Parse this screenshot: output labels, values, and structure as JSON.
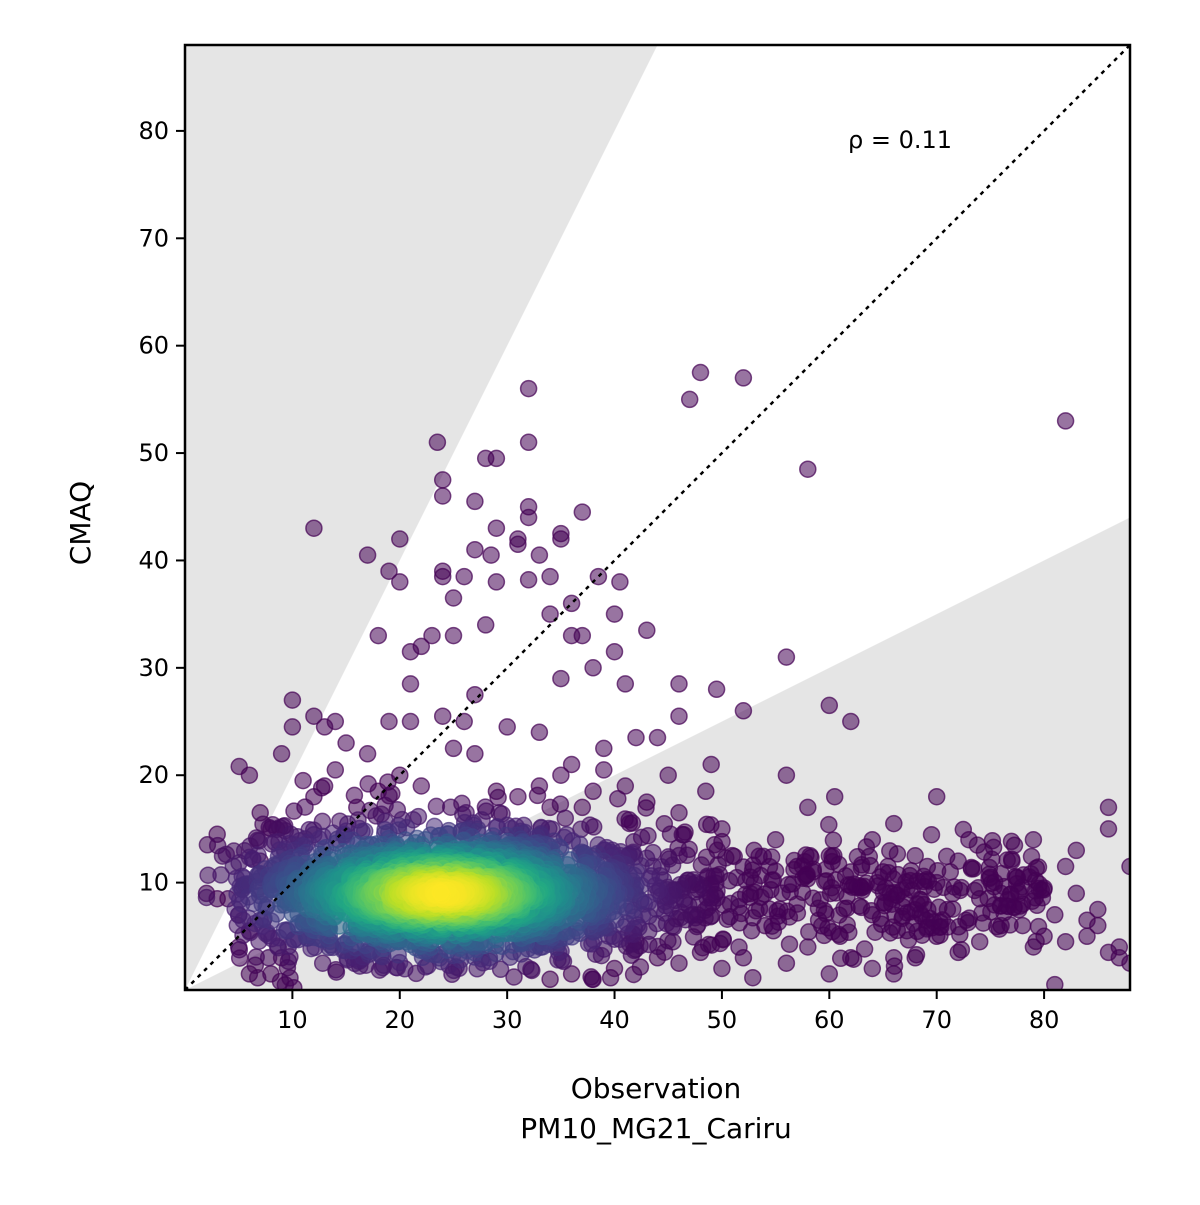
{
  "chart_data": {
    "type": "scatter",
    "title": "",
    "xlabel": "Observation",
    "xlabel_line2": "PM10_MG21_Cariru",
    "ylabel": "CMAQ",
    "xlim": [
      0,
      88
    ],
    "ylim": [
      0,
      88
    ],
    "xticks": [
      10,
      20,
      30,
      40,
      50,
      60,
      70,
      80
    ],
    "yticks": [
      10,
      20,
      30,
      40,
      50,
      60,
      70,
      80
    ],
    "annotation": "ρ = 0.11",
    "reference_line": "1:1 (dotted)",
    "shaded_region": "outside factor-of-2 band (light gray)",
    "color_scale": "viridis (point density)",
    "dense_core": {
      "x_center": 24,
      "y_center": 9,
      "x_spread": 9,
      "y_spread": 3
    },
    "outlier_points": [
      [
        12,
        43
      ],
      [
        17,
        40.5
      ],
      [
        19,
        39
      ],
      [
        20,
        38
      ],
      [
        20,
        42
      ],
      [
        23.5,
        51
      ],
      [
        24,
        47.5
      ],
      [
        24,
        46
      ],
      [
        24,
        39
      ],
      [
        25,
        36.5
      ],
      [
        24,
        38.5
      ],
      [
        28,
        49.5
      ],
      [
        29,
        49.5
      ],
      [
        27,
        45.5
      ],
      [
        29,
        43
      ],
      [
        31,
        42
      ],
      [
        31,
        41.5
      ],
      [
        32,
        45
      ],
      [
        32,
        44
      ],
      [
        32,
        51
      ],
      [
        32,
        56
      ],
      [
        33,
        40.5
      ],
      [
        34,
        38.5
      ],
      [
        35,
        42
      ],
      [
        35,
        42.5
      ],
      [
        37,
        44.5
      ],
      [
        36,
        36
      ],
      [
        34,
        35
      ],
      [
        38.5,
        38.5
      ],
      [
        40.5,
        38
      ],
      [
        40,
        35
      ],
      [
        43,
        33.5
      ],
      [
        40,
        31.5
      ],
      [
        36,
        33
      ],
      [
        37,
        33
      ],
      [
        35,
        29
      ],
      [
        38,
        30
      ],
      [
        41,
        28.5
      ],
      [
        28,
        34
      ],
      [
        27,
        41
      ],
      [
        28.5,
        40.5
      ],
      [
        29,
        38
      ],
      [
        32,
        38.2
      ],
      [
        26,
        38.5
      ],
      [
        25,
        33
      ],
      [
        23,
        33
      ],
      [
        22,
        32
      ],
      [
        21,
        31.5
      ],
      [
        21,
        28.5
      ],
      [
        18,
        33
      ],
      [
        47,
        55
      ],
      [
        48,
        57.5
      ],
      [
        52,
        57
      ],
      [
        58,
        48.5
      ],
      [
        82,
        53
      ],
      [
        56,
        31
      ],
      [
        60,
        26.5
      ],
      [
        62,
        25
      ],
      [
        46,
        28.5
      ],
      [
        49.5,
        28
      ],
      [
        52,
        26
      ],
      [
        46,
        25.5
      ],
      [
        44,
        23.5
      ],
      [
        42,
        23.5
      ],
      [
        39,
        22.5
      ],
      [
        45,
        20
      ],
      [
        49,
        21
      ],
      [
        48.5,
        18.5
      ],
      [
        56,
        20
      ],
      [
        58,
        17
      ],
      [
        60.5,
        18
      ],
      [
        70,
        18
      ],
      [
        86,
        17
      ],
      [
        86,
        15
      ],
      [
        66,
        15.5
      ],
      [
        73,
        14
      ],
      [
        64,
        14
      ],
      [
        79,
        14
      ],
      [
        83,
        13
      ],
      [
        2,
        9
      ],
      [
        3,
        8.5
      ],
      [
        4,
        8.5
      ],
      [
        3,
        14.5
      ],
      [
        5,
        4
      ],
      [
        6,
        1.5
      ],
      [
        6,
        20
      ],
      [
        7,
        16.5
      ],
      [
        8,
        15
      ],
      [
        9,
        22
      ],
      [
        10,
        27
      ],
      [
        10,
        24.5
      ],
      [
        12,
        25.5
      ],
      [
        13,
        24.5
      ],
      [
        14,
        25
      ],
      [
        15,
        23
      ],
      [
        17,
        22
      ],
      [
        19,
        25
      ],
      [
        21,
        25
      ],
      [
        24,
        25.5
      ],
      [
        27,
        27.5
      ],
      [
        26,
        25
      ],
      [
        30,
        24.5
      ],
      [
        27,
        22
      ],
      [
        25,
        22.5
      ],
      [
        33,
        24
      ],
      [
        35,
        20
      ],
      [
        36,
        21
      ],
      [
        37,
        17
      ],
      [
        39,
        20.5
      ],
      [
        41,
        19
      ],
      [
        43,
        17.5
      ],
      [
        46,
        16.5
      ],
      [
        50,
        15
      ],
      [
        53,
        13
      ],
      [
        55,
        14
      ],
      [
        57,
        11.5
      ],
      [
        60,
        12.5
      ],
      [
        62,
        11
      ],
      [
        63,
        9.5
      ],
      [
        65,
        11
      ],
      [
        67,
        8.5
      ],
      [
        68,
        12.5
      ],
      [
        70,
        10
      ],
      [
        71,
        7.5
      ],
      [
        72,
        12
      ],
      [
        74,
        8.5
      ],
      [
        75,
        10.5
      ],
      [
        76,
        9
      ],
      [
        77,
        12
      ],
      [
        78,
        8
      ],
      [
        80,
        9.5
      ],
      [
        81,
        7
      ],
      [
        82,
        11.5
      ],
      [
        83,
        9
      ],
      [
        84,
        6.5
      ],
      [
        85,
        7.5
      ],
      [
        86,
        3.5
      ],
      [
        87,
        3
      ],
      [
        88,
        11.5
      ],
      [
        84,
        5
      ],
      [
        80,
        5
      ],
      [
        78,
        6
      ],
      [
        74,
        4.5
      ],
      [
        70,
        5
      ],
      [
        68,
        3
      ],
      [
        66,
        1.5
      ],
      [
        64,
        2
      ],
      [
        62,
        3
      ],
      [
        60,
        1.5
      ],
      [
        58,
        4
      ],
      [
        56,
        2.5
      ],
      [
        54,
        6
      ],
      [
        52,
        3
      ],
      [
        50,
        2
      ],
      [
        48,
        3.5
      ],
      [
        46,
        2.5
      ],
      [
        44,
        3
      ],
      [
        42,
        4.5
      ],
      [
        40,
        2
      ],
      [
        38,
        1
      ],
      [
        36,
        1.5
      ],
      [
        34,
        1
      ],
      [
        11,
        19.5
      ],
      [
        12,
        18
      ],
      [
        13,
        19
      ],
      [
        14,
        20.5
      ],
      [
        16,
        17
      ],
      [
        18,
        18.5
      ],
      [
        20,
        20
      ],
      [
        22,
        19
      ],
      [
        29,
        18.5
      ],
      [
        31,
        18
      ],
      [
        33,
        19
      ],
      [
        34,
        17
      ],
      [
        38,
        18.5
      ],
      [
        8,
        10
      ],
      [
        7,
        12
      ],
      [
        5,
        7
      ],
      [
        6,
        5.5
      ],
      [
        9,
        3
      ],
      [
        8,
        1.5
      ],
      [
        81,
        0.5
      ],
      [
        88,
        2.5
      ],
      [
        66,
        3
      ],
      [
        57,
        8
      ],
      [
        59,
        6.5
      ],
      [
        61,
        5
      ],
      [
        64,
        7
      ],
      [
        69,
        6.5
      ],
      [
        72,
        3.5
      ],
      [
        76,
        6
      ],
      [
        79,
        4
      ],
      [
        82,
        4.5
      ],
      [
        85,
        6
      ],
      [
        87,
        4
      ]
    ]
  }
}
